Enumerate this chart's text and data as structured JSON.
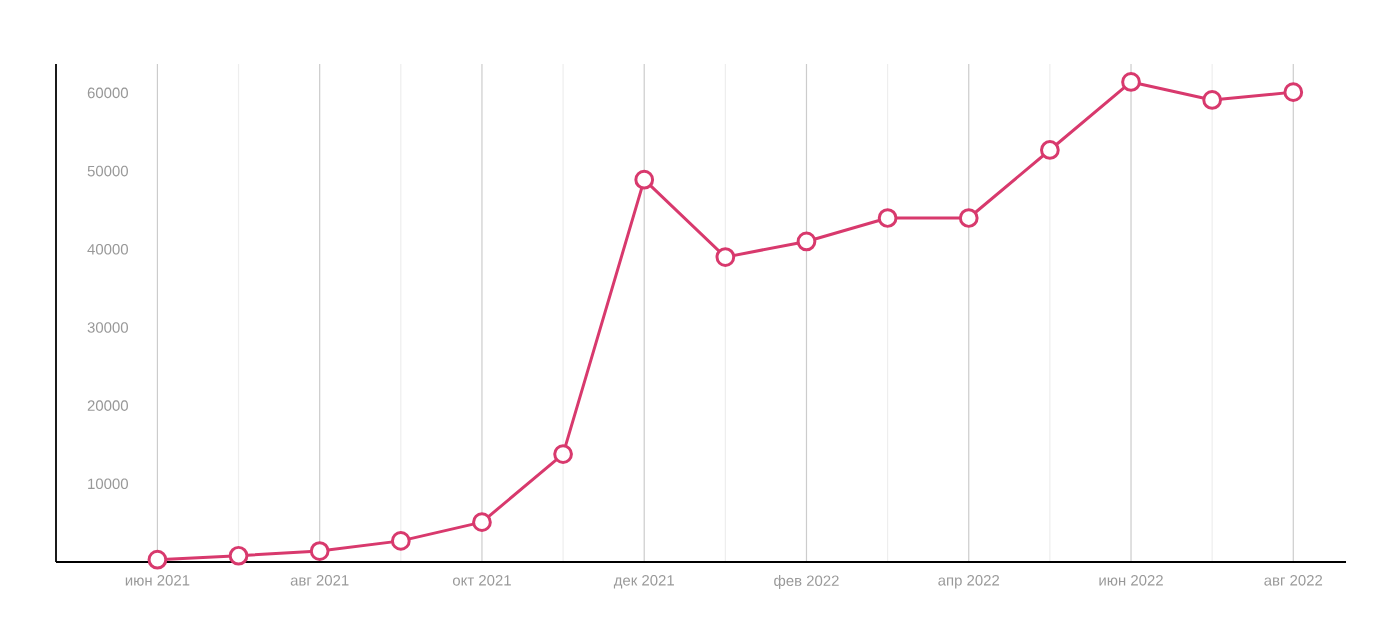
{
  "chart_data": {
    "type": "line",
    "categories": [
      "июн 2021",
      null,
      "авг 2021",
      null,
      "окт 2021",
      null,
      "дек 2021",
      null,
      "фев 2022",
      null,
      "апр 2022",
      null,
      "июн 2022",
      null,
      "авг 2022"
    ],
    "series": [
      {
        "color": "#d8396d",
        "values": [
          300,
          800,
          1400,
          2700,
          5100,
          13800,
          48900,
          39000,
          41000,
          44000,
          44000,
          52700,
          61400,
          59100,
          60100
        ]
      }
    ],
    "ylim": [
      0,
      63700
    ],
    "yticks": [
      10000,
      20000,
      30000,
      40000,
      50000,
      60000
    ],
    "grid": "x",
    "marker": "circle",
    "line_style": "solid"
  }
}
